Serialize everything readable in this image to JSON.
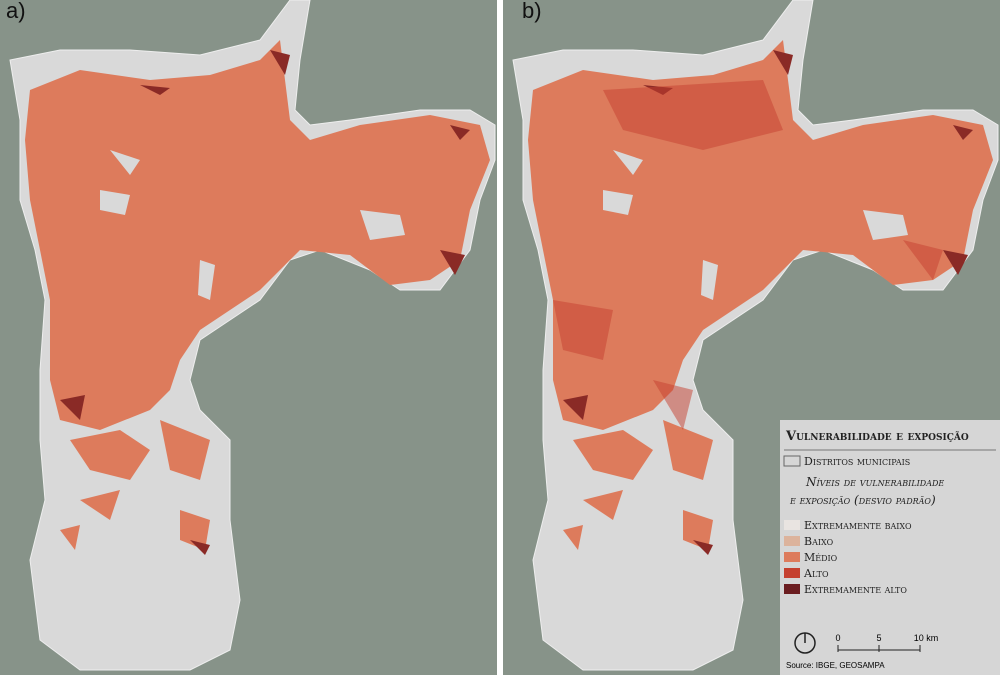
{
  "panels": [
    {
      "label": "a)"
    },
    {
      "label": "b)"
    }
  ],
  "legend": {
    "title": "Vulnerabilidade e exposição",
    "districts": "Distritos municipais",
    "subtitle": [
      "Níveis de vulnerabilidade",
      "e exposição (desvio padrão)"
    ],
    "classes": [
      {
        "label": "Extremamente baixo",
        "color": "#e9e4e1"
      },
      {
        "label": "Baixo",
        "color": "#dcb39c"
      },
      {
        "label": "Médio",
        "color": "#dd7b5c"
      },
      {
        "label": "Alto",
        "color": "#c5402f"
      },
      {
        "label": "Extremamente alto",
        "color": "#6b1d20"
      }
    ],
    "scale": [
      "0",
      "5",
      "10 km"
    ],
    "source": "Source: IBGE, GEOSAMPA"
  }
}
